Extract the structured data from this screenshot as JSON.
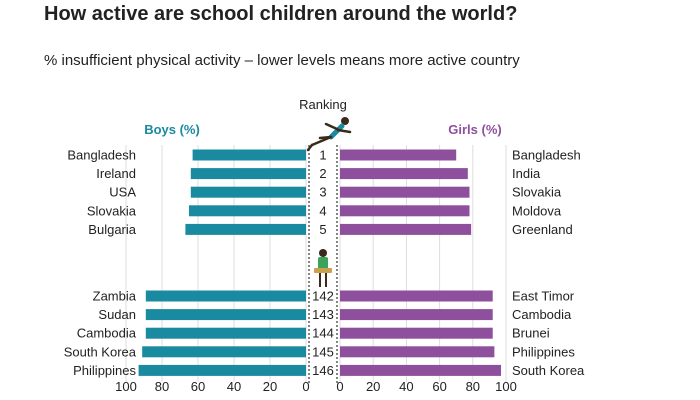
{
  "title": "How active are school children around the world?",
  "subtitle": "% insufficient physical activity – lower levels means more active country",
  "colors": {
    "boys": "#1a8aa0",
    "girls": "#8e4f9c",
    "gridline": "#dddddd",
    "text": "#222222"
  },
  "icons": [
    "runner-icon",
    "seated-child-icon"
  ],
  "chart_data": {
    "type": "bar",
    "ranking_label": "Ranking",
    "xlim": [
      0,
      100
    ],
    "ticks": [
      "100",
      "80",
      "60",
      "40",
      "20",
      "0",
      "0",
      "20",
      "40",
      "60",
      "80",
      "100"
    ],
    "groups": [
      {
        "name": "top",
        "ranks": [
          "1",
          "2",
          "3",
          "4",
          "5"
        ],
        "boys": {
          "countries": [
            "Bangladesh",
            "Ireland",
            "USA",
            "Slovakia",
            "Bulgaria"
          ],
          "values": [
            63,
            64,
            64,
            65,
            67
          ]
        },
        "girls": {
          "countries": [
            "Bangladesh",
            "India",
            "Slovakia",
            "Moldova",
            "Greenland"
          ],
          "values": [
            70,
            77,
            78,
            78,
            79
          ]
        }
      },
      {
        "name": "bottom",
        "ranks": [
          "142",
          "143",
          "144",
          "145",
          "146"
        ],
        "boys": {
          "countries": [
            "Zambia",
            "Sudan",
            "Cambodia",
            "South Korea",
            "Philippines"
          ],
          "values": [
            89,
            89,
            89,
            91,
            93
          ]
        },
        "girls": {
          "countries": [
            "East Timor",
            "Cambodia",
            "Brunei",
            "Philippines",
            "South Korea"
          ],
          "values": [
            92,
            92,
            92,
            93,
            97
          ]
        }
      }
    ],
    "series": [
      {
        "name": "Boys (%)",
        "side": "left"
      },
      {
        "name": "Girls (%)",
        "side": "right"
      }
    ]
  }
}
